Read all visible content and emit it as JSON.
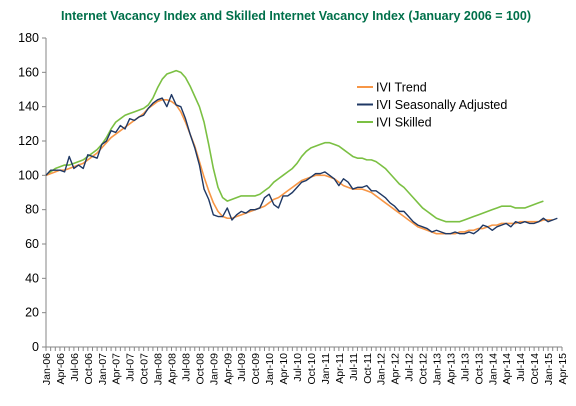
{
  "chart_data": {
    "type": "line",
    "title": "Internet Vacancy Index and Skilled Internet Vacancy Index (January 2006 = 100)",
    "title_color": "#00704A",
    "xlabel": "",
    "ylabel": "",
    "ylim": [
      0,
      180
    ],
    "yticks": [
      0,
      20,
      40,
      60,
      80,
      100,
      120,
      140,
      160,
      180
    ],
    "x_start": "2006-01",
    "x_ticks": [
      "Jan-06",
      "Apr-06",
      "Jul-06",
      "Oct-06",
      "Jan-07",
      "Apr-07",
      "Jul-07",
      "Oct-07",
      "Jan-08",
      "Apr-08",
      "Jul-08",
      "Oct-08",
      "Jan-09",
      "Apr-09",
      "Jul-09",
      "Oct-09",
      "Jan-10",
      "Apr-10",
      "Jul-10",
      "Oct-10",
      "Jan-11",
      "Apr-11",
      "Jul-11",
      "Oct-11",
      "Jan-12",
      "Apr-12",
      "Jul-12",
      "Oct-12",
      "Jan-13",
      "Apr-13",
      "Jul-13",
      "Oct-13",
      "Jan-14",
      "Apr-14",
      "Jul-14",
      "Oct-14",
      "Jan-15",
      "Apr-15"
    ],
    "grid": false,
    "legend_position": "center-right",
    "series": [
      {
        "name": "IVI Trend",
        "color": "#F79646",
        "values": [
          100,
          101,
          102,
          103,
          103,
          104,
          105,
          106,
          107,
          109,
          111,
          113,
          116,
          119,
          122,
          124,
          126,
          128,
          130,
          132,
          134,
          136,
          139,
          141,
          143,
          144,
          144,
          143,
          141,
          137,
          131,
          124,
          117,
          108,
          99,
          91,
          84,
          79,
          76,
          75,
          75,
          76,
          77,
          78,
          79,
          80,
          81,
          82,
          84,
          86,
          87,
          89,
          91,
          93,
          95,
          97,
          98,
          99,
          100,
          100,
          100,
          99,
          98,
          96,
          94,
          93,
          92,
          92,
          92,
          91,
          90,
          88,
          86,
          84,
          82,
          80,
          78,
          76,
          74,
          72,
          70,
          69,
          68,
          67,
          66,
          66,
          66,
          66,
          66,
          67,
          67,
          68,
          68,
          69,
          69,
          70,
          71,
          71,
          72,
          72,
          72,
          72,
          73,
          73,
          73,
          73,
          73,
          74,
          74,
          74
        ]
      },
      {
        "name": "IVI Seasonally Adjusted",
        "color": "#1F3864",
        "values": [
          100,
          103,
          103,
          103,
          102,
          111,
          104,
          106,
          104,
          112,
          111,
          110,
          118,
          120,
          126,
          125,
          129,
          127,
          133,
          132,
          134,
          135,
          139,
          142,
          144,
          145,
          140,
          147,
          141,
          140,
          133,
          124,
          116,
          106,
          92,
          86,
          77,
          76,
          76,
          81,
          74,
          77,
          79,
          78,
          80,
          80,
          81,
          87,
          89,
          83,
          81,
          88,
          88,
          90,
          93,
          96,
          97,
          99,
          101,
          101,
          102,
          100,
          98,
          94,
          98,
          96,
          92,
          93,
          93,
          94,
          91,
          91,
          89,
          87,
          84,
          82,
          79,
          79,
          76,
          73,
          71,
          70,
          69,
          67,
          68,
          67,
          66,
          66,
          67,
          66,
          66,
          67,
          66,
          68,
          71,
          70,
          68,
          70,
          71,
          72,
          70,
          73,
          72,
          73,
          72,
          72,
          73,
          75,
          73,
          74,
          75
        ]
      },
      {
        "name": "IVI Skilled",
        "color": "#7BC043",
        "values": [
          100,
          102,
          104,
          105,
          106,
          106,
          107,
          108,
          109,
          111,
          113,
          115,
          118,
          122,
          127,
          131,
          133,
          135,
          136,
          137,
          138,
          139,
          141,
          145,
          151,
          156,
          159,
          160,
          161,
          160,
          157,
          152,
          146,
          140,
          131,
          118,
          104,
          93,
          87,
          85,
          86,
          87,
          88,
          88,
          88,
          88,
          89,
          91,
          93,
          96,
          98,
          100,
          102,
          104,
          107,
          111,
          114,
          116,
          117,
          118,
          119,
          119,
          118,
          117,
          115,
          113,
          111,
          110,
          110,
          109,
          109,
          108,
          106,
          104,
          101,
          98,
          95,
          93,
          90,
          87,
          84,
          81,
          79,
          77,
          75,
          74,
          73,
          73,
          73,
          73,
          74,
          75,
          76,
          77,
          78,
          79,
          80,
          81,
          82,
          82,
          82,
          81,
          81,
          81,
          82,
          83,
          84,
          85
        ]
      }
    ]
  }
}
